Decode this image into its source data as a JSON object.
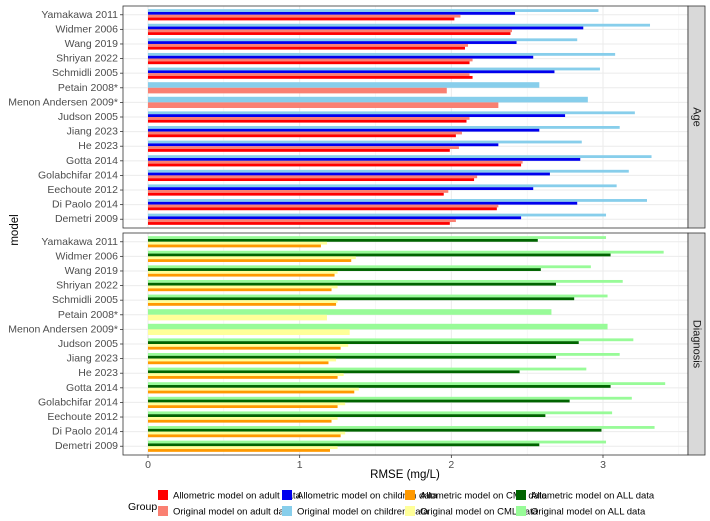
{
  "chart_data": {
    "type": "bar",
    "orientation": "horizontal",
    "title": "",
    "xlabel": "RMSE (mg/L)",
    "ylabel": "model",
    "xlim": [
      -0.17,
      3.58
    ],
    "xticks": [
      0,
      1,
      2,
      3
    ],
    "xtick_labels": [
      "0",
      "1",
      "2",
      "3"
    ],
    "grid": true,
    "legend_title": "Group",
    "legend_position": "bottom",
    "categories": [
      "Yamakawa 2011",
      "Widmer 2006",
      "Wang 2019",
      "Shriyan 2022",
      "Schmidli 2005",
      "Petain 2008*",
      "Menon Andersen 2009*",
      "Judson 2005",
      "Jiang 2023",
      "He 2023",
      "Gotta 2014",
      "Golabchifar 2014",
      "Eechoute 2012",
      "Di Paolo 2014",
      "Demetri 2009"
    ],
    "legend": [
      {
        "name": "Allometric model on adult data",
        "color": "#FF0000"
      },
      {
        "name": "Allometric model on children data",
        "color": "#0000EE"
      },
      {
        "name": "Allometric model on CML data",
        "color": "#FF9900"
      },
      {
        "name": "Allometric model on ALL data",
        "color": "#006400"
      },
      {
        "name": "Original model on adult data",
        "color": "#FA8072"
      },
      {
        "name": "Original model on children data",
        "color": "#87CEEB"
      },
      {
        "name": "Original model on CML data",
        "color": "#FFFF99"
      },
      {
        "name": "Original model on ALL data",
        "color": "#98FB98"
      }
    ],
    "panels": [
      {
        "strip": "Age",
        "series": [
          {
            "name": "Original model on children data",
            "color": "#87CEEB",
            "values": [
              2.97,
              3.31,
              2.83,
              3.08,
              2.98,
              2.58,
              2.9,
              3.21,
              3.11,
              2.86,
              3.32,
              3.17,
              3.09,
              3.29,
              3.02
            ]
          },
          {
            "name": "Allometric model on children data",
            "color": "#0000EE",
            "values": [
              2.42,
              2.87,
              2.43,
              2.54,
              2.68,
              null,
              null,
              2.75,
              2.58,
              2.31,
              2.85,
              2.65,
              2.54,
              2.83,
              2.46
            ]
          },
          {
            "name": "Original model on adult data",
            "color": "#FA8072",
            "values": [
              2.06,
              2.4,
              2.11,
              2.14,
              2.12,
              1.97,
              2.31,
              2.12,
              2.07,
              2.05,
              2.47,
              2.17,
              1.98,
              2.31,
              2.03
            ]
          },
          {
            "name": "Allometric model on adult data",
            "color": "#FF0000",
            "values": [
              2.02,
              2.39,
              2.09,
              2.12,
              2.14,
              null,
              null,
              2.1,
              2.03,
              1.99,
              2.46,
              2.15,
              1.95,
              2.3,
              1.99
            ]
          }
        ]
      },
      {
        "strip": "Diagnosis",
        "series": [
          {
            "name": "Original model on ALL data",
            "color": "#98FB98",
            "values": [
              3.02,
              3.4,
              2.92,
              3.13,
              3.03,
              2.66,
              3.03,
              3.2,
              3.11,
              2.89,
              3.41,
              3.19,
              3.06,
              3.34,
              3.02
            ]
          },
          {
            "name": "Allometric model on ALL data",
            "color": "#006400",
            "values": [
              2.57,
              3.05,
              2.59,
              2.69,
              2.81,
              null,
              null,
              2.84,
              2.69,
              2.45,
              3.05,
              2.78,
              2.62,
              2.99,
              2.58
            ]
          },
          {
            "name": "Original model on CML data",
            "color": "#FFFF99",
            "values": [
              1.18,
              1.37,
              1.25,
              1.25,
              1.25,
              1.18,
              1.33,
              1.32,
              1.24,
              1.29,
              1.39,
              1.3,
              1.25,
              1.3,
              1.25
            ]
          },
          {
            "name": "Allometric model on CML data",
            "color": "#FF9900",
            "values": [
              1.14,
              1.34,
              1.23,
              1.21,
              1.24,
              null,
              null,
              1.27,
              1.19,
              1.25,
              1.36,
              1.25,
              1.21,
              1.27,
              1.2
            ]
          }
        ]
      }
    ]
  }
}
